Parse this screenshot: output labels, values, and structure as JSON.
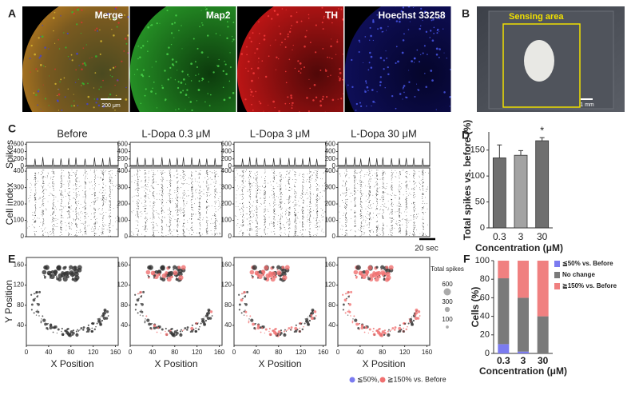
{
  "panel_labels": [
    "A",
    "B",
    "C",
    "D",
    "E",
    "F"
  ],
  "panel_a": {
    "channels": [
      "Merge",
      "Map2",
      "TH",
      "Hoechst 33258"
    ],
    "scale_bar": "200 μm"
  },
  "panel_b": {
    "label": "Sensing area",
    "scale_bar": "1 mm"
  },
  "chart_data": [
    {
      "type": "raster",
      "conditions": [
        "Before",
        "L-Dopa 0.3 μM",
        "L-Dopa 3 μM",
        "L-Dopa 30 μM"
      ],
      "spikes_label": "Spikes",
      "cell_index_label": "Cell index",
      "spikes_ylim": [
        0,
        650
      ],
      "spikes_yticks": [
        0,
        200,
        400,
        600
      ],
      "ylim": [
        0,
        420
      ],
      "yticks": [
        0,
        100,
        200,
        300,
        400
      ],
      "scale_bar": "20 sec"
    },
    {
      "type": "bar",
      "categories": [
        "0.3",
        "3",
        "30"
      ],
      "values": [
        135,
        140,
        168
      ],
      "errors": [
        25,
        9,
        6
      ],
      "colors": [
        "#6f6f6f",
        "#a3a3a3",
        "#6f6f6f"
      ],
      "ylim": [
        0,
        185
      ],
      "yticks": [
        0,
        50,
        100,
        150
      ],
      "ylabel": "Total spikes vs. before (%)",
      "xlabel": "Concentration (μM)",
      "annotations": [
        {
          "category": "30",
          "text": "*"
        }
      ]
    },
    {
      "type": "scatter-map",
      "xlabel": "X Position",
      "ylabel": "Y Position",
      "xlim": [
        0,
        165
      ],
      "ylim": [
        0,
        175
      ],
      "xticks": [
        0,
        40,
        80,
        120,
        160
      ],
      "yticks": [
        40,
        80,
        120,
        160
      ],
      "size_legend": {
        "title": "Total spikes",
        "values": [
          600,
          300,
          100
        ],
        "labels": [
          "600",
          "300",
          "100"
        ]
      },
      "color_legend": [
        {
          "label": "≦50%,",
          "color": "#7b7bf0"
        },
        {
          "label": "≧150% vs. Before",
          "color": "#f07070"
        }
      ]
    },
    {
      "type": "stacked-bar",
      "categories": [
        "0.3",
        "3",
        "30"
      ],
      "series": [
        {
          "name": "≦50% vs. Before",
          "color": "#7b7bf0",
          "values": [
            10,
            2,
            0
          ]
        },
        {
          "name": "No change",
          "color": "#7a7a7a",
          "values": [
            71,
            58,
            40
          ]
        },
        {
          "name": "≧150% vs. Before",
          "color": "#f08080",
          "values": [
            19,
            40,
            60
          ]
        }
      ],
      "ylim": [
        0,
        100
      ],
      "yticks": [
        0,
        20,
        40,
        60,
        80,
        100
      ],
      "ylabel": "Cells (%)",
      "xlabel": "Concentration (μM)"
    }
  ]
}
